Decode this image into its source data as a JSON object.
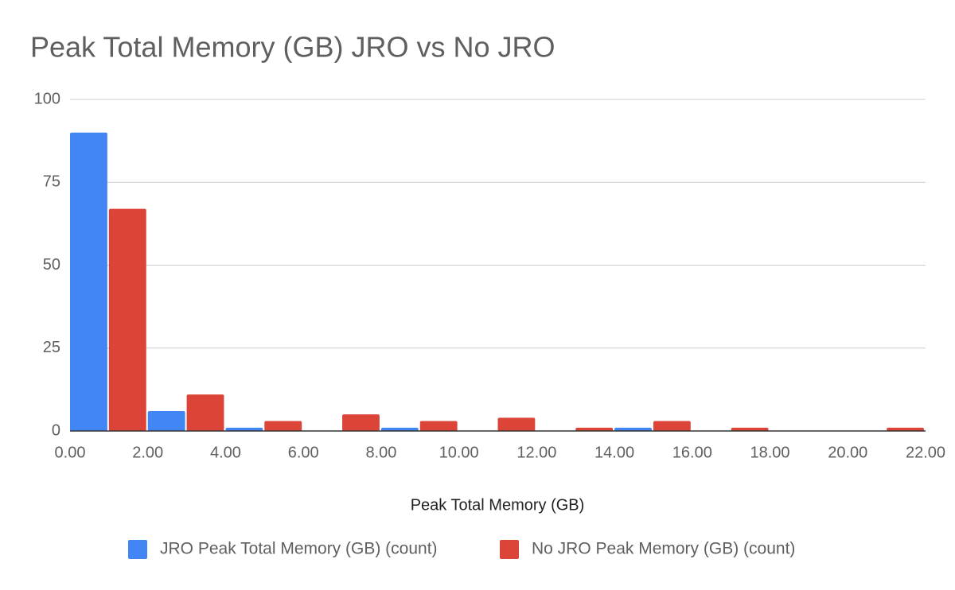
{
  "chart_data": {
    "type": "histogram",
    "title": "Peak Total Memory (GB) JRO vs No JRO",
    "x_label": "Peak Total Memory (GB)",
    "bins": [
      0,
      2,
      4,
      6,
      8,
      10,
      12,
      14,
      16,
      18,
      20,
      22
    ],
    "series": [
      {
        "name": "JRO Peak Total Memory (GB) (count)",
        "color": "#4285f4",
        "values": [
          90,
          6,
          1,
          0,
          1,
          0,
          0,
          1,
          0,
          0,
          0
        ]
      },
      {
        "name": "No JRO Peak Memory (GB) (count)",
        "color": "#db4437",
        "values": [
          67,
          11,
          3,
          5,
          3,
          4,
          1,
          3,
          1,
          0,
          1
        ]
      }
    ],
    "xlim": [
      0,
      22
    ],
    "xticks": [
      {
        "value": 0,
        "label": "0.00"
      },
      {
        "value": 2,
        "label": "2.00"
      },
      {
        "value": 4,
        "label": "4.00"
      },
      {
        "value": 6,
        "label": "6.00"
      },
      {
        "value": 8,
        "label": "8.00"
      },
      {
        "value": 10,
        "label": "10.00"
      },
      {
        "value": 12,
        "label": "12.00"
      },
      {
        "value": 14,
        "label": "14.00"
      },
      {
        "value": 16,
        "label": "16.00"
      },
      {
        "value": 18,
        "label": "18.00"
      },
      {
        "value": 20,
        "label": "20.00"
      },
      {
        "value": 22,
        "label": "22.00"
      }
    ],
    "ylim": [
      0,
      100
    ],
    "yticks": [
      0,
      25,
      50,
      75,
      100
    ],
    "grid": true,
    "legend": "bottom"
  }
}
